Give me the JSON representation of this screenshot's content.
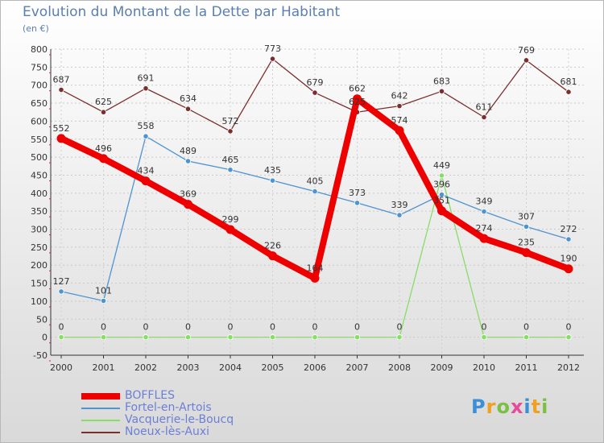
{
  "title": "Evolution du Montant de la Dette par Habitant",
  "unit_label": "(en €)",
  "logo_text": "Proxiti",
  "chart_data": {
    "type": "line",
    "x": [
      "2000",
      "2001",
      "2002",
      "2003",
      "2004",
      "2005",
      "2006",
      "2007",
      "2008",
      "2009",
      "2010",
      "2011",
      "2012"
    ],
    "ylim": [
      -50,
      800
    ],
    "yticks": [
      -50,
      0,
      50,
      100,
      150,
      200,
      250,
      300,
      350,
      400,
      450,
      500,
      550,
      600,
      650,
      700,
      750,
      800
    ],
    "grid": true,
    "legend_position": "bottom-left",
    "series": [
      {
        "name": "BOFFLES",
        "color": "#ee0000",
        "values": [
          552,
          496,
          434,
          369,
          299,
          226,
          164,
          662,
          574,
          351,
          274,
          235,
          190
        ],
        "labels": [
          "552",
          "496",
          "434",
          "369",
          "299",
          "226",
          "164",
          "662",
          "574",
          "351",
          "274",
          "235",
          "190"
        ]
      },
      {
        "name": "Fortel-en-Artois",
        "color": "#4f93cf",
        "values": [
          127,
          101,
          558,
          489,
          465,
          435,
          405,
          373,
          339,
          396,
          349,
          307,
          272
        ],
        "labels": [
          "127",
          "101",
          "558",
          "489",
          "465",
          "435",
          "405",
          "373",
          "339",
          "396",
          "349",
          "307",
          "272"
        ]
      },
      {
        "name": "Vacquerie-le-Boucq",
        "color": "#88dd66",
        "values": [
          0,
          0,
          0,
          0,
          0,
          0,
          0,
          0,
          0,
          449,
          0,
          0,
          0
        ],
        "labels": [
          "0",
          "0",
          "0",
          "0",
          "0",
          "0",
          "0",
          "0",
          "0",
          "449",
          "0",
          "0",
          "0"
        ]
      },
      {
        "name": "Noeux-lès-Auxi",
        "color": "#7a2f2f",
        "values": [
          687,
          625,
          691,
          634,
          572,
          773,
          679,
          625,
          642,
          683,
          611,
          769,
          681
        ],
        "labels": [
          "687",
          "625",
          "691",
          "634",
          "572",
          "773",
          "679",
          "625",
          "642",
          "683",
          "611",
          "769",
          "681"
        ]
      }
    ]
  }
}
